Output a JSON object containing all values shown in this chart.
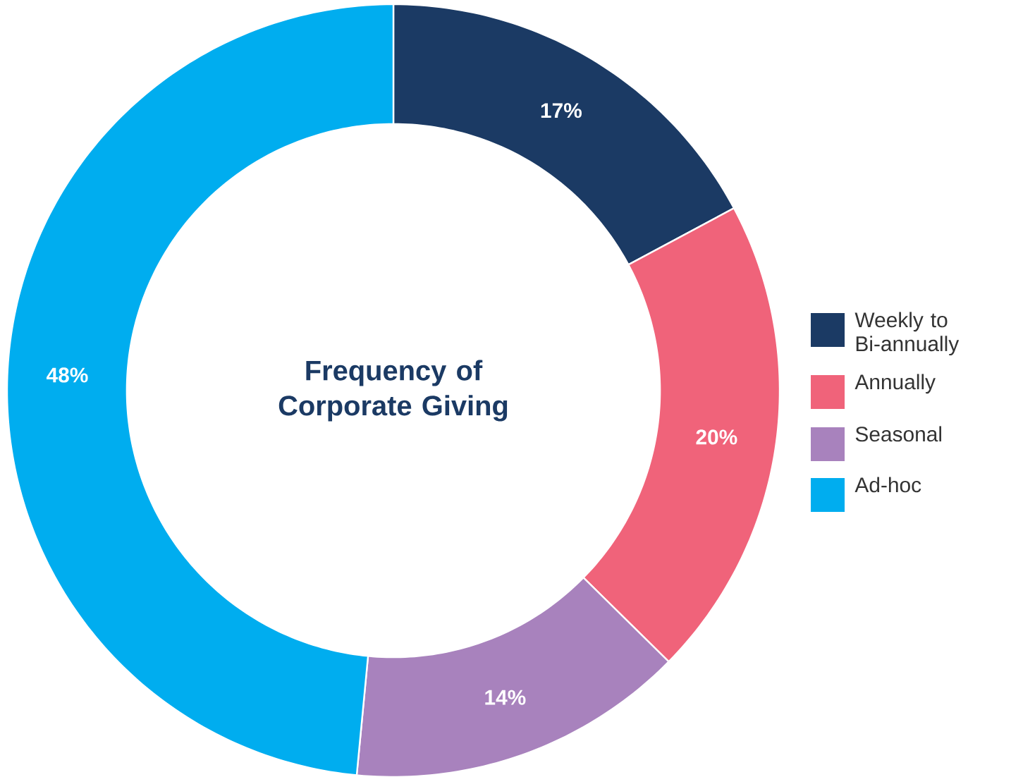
{
  "chart_data": {
    "type": "donut",
    "title": "Frequency of Corporate Giving",
    "categories": [
      "Weekly to Bi-annually",
      "Annually",
      "Seasonal",
      "Ad-hoc"
    ],
    "values": [
      17,
      20,
      14,
      48
    ],
    "colors": [
      "#1b3a64",
      "#f0637a",
      "#a882bd",
      "#00adef"
    ],
    "value_labels": [
      "17%",
      "20%",
      "14%",
      "48%"
    ],
    "legend": "right"
  }
}
